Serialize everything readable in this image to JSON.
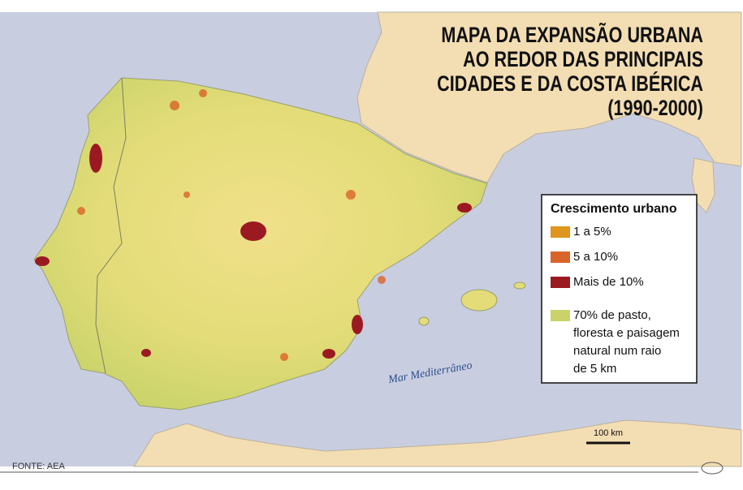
{
  "title": [
    "MAPA DA EXPANSÃO URBANA",
    "AO REDOR DAS PRINCIPAIS",
    "CIDADES E DA COSTA IBÉRICA",
    "(1990-2000)"
  ],
  "legend": {
    "title": "Crescimento urbano",
    "items": [
      {
        "label": [
          "1 a 5%"
        ],
        "color": "#e0951f"
      },
      {
        "label": [
          "5 a 10%"
        ],
        "color": "#d9642a"
      },
      {
        "label": [
          "Mais de 10%"
        ],
        "color": "#9b1a22"
      },
      {
        "label": [
          "70% de pasto,",
          "floresta e paisagem",
          "natural num raio",
          "de 5 km"
        ],
        "color": "#c9d36a"
      }
    ]
  },
  "sea_label": "Mar Mediterrâneo",
  "scale_bar": "100 km",
  "source": "FONTE: AEA"
}
